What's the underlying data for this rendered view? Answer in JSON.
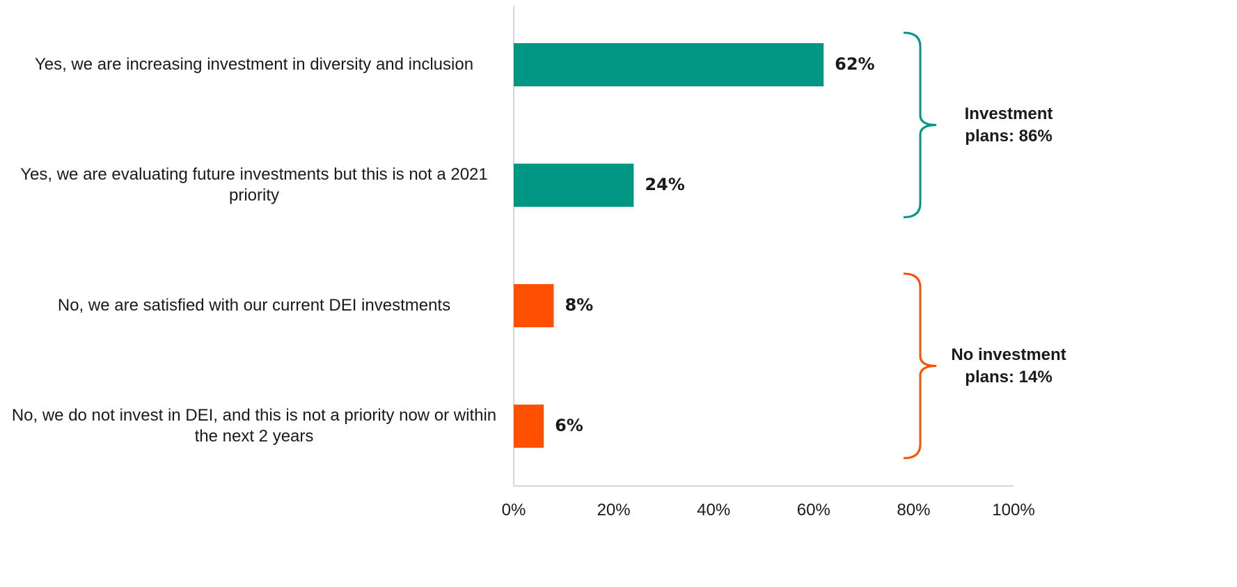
{
  "chart_data": {
    "type": "bar",
    "orientation": "horizontal",
    "categories": [
      "Yes, we are increasing investment in diversity and inclusion",
      "Yes, we are evaluating future investments but this is not a 2021 priority",
      "No, we are satisfied with our current DEI investments",
      "No, we do not invest in DEI, and this is not a priority now or within the next 2 years"
    ],
    "values": [
      62,
      24,
      8,
      6
    ],
    "value_labels": [
      "62%",
      "24%",
      "8%",
      "6%"
    ],
    "colors": [
      "#009684",
      "#009684",
      "#ff4f00",
      "#ff4f00"
    ],
    "xlim": [
      0,
      100
    ],
    "xticks": [
      {
        "value": 0,
        "label": "0%"
      },
      {
        "value": 20,
        "label": "20%"
      },
      {
        "value": 40,
        "label": "40%"
      },
      {
        "value": 60,
        "label": "60%"
      },
      {
        "value": 80,
        "label": "80%"
      },
      {
        "value": 100,
        "label": "100%"
      }
    ],
    "annotations": [
      {
        "text": "Investment plans: 86%",
        "color": "#009684"
      },
      {
        "text": "No investment plans: 14%",
        "color": "#ff4f00"
      }
    ]
  }
}
